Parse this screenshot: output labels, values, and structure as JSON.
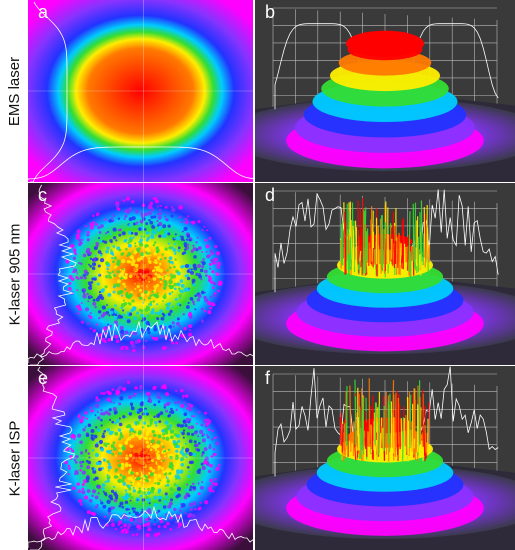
{
  "rows": [
    {
      "label": "EMS laser",
      "left": {
        "letter": "a",
        "style": "smooth"
      },
      "right": {
        "letter": "b",
        "style": "smooth"
      }
    },
    {
      "label": "K-laser 905 nm",
      "left": {
        "letter": "c",
        "style": "speckle"
      },
      "right": {
        "letter": "d",
        "style": "spiky"
      }
    },
    {
      "label": "K-laser ISP",
      "left": {
        "letter": "e",
        "style": "speckle"
      },
      "right": {
        "letter": "f",
        "style": "spiky"
      }
    }
  ],
  "colors": {
    "background_2d": "#3a0f3a",
    "background_3d": "#3a3a3a",
    "profile_line": "#ffffff",
    "rainbow": [
      "#ff0000",
      "#ff7a00",
      "#ffee00",
      "#33dd33",
      "#00ccff",
      "#2233ff",
      "#8833ff",
      "#ff00ff"
    ]
  }
}
